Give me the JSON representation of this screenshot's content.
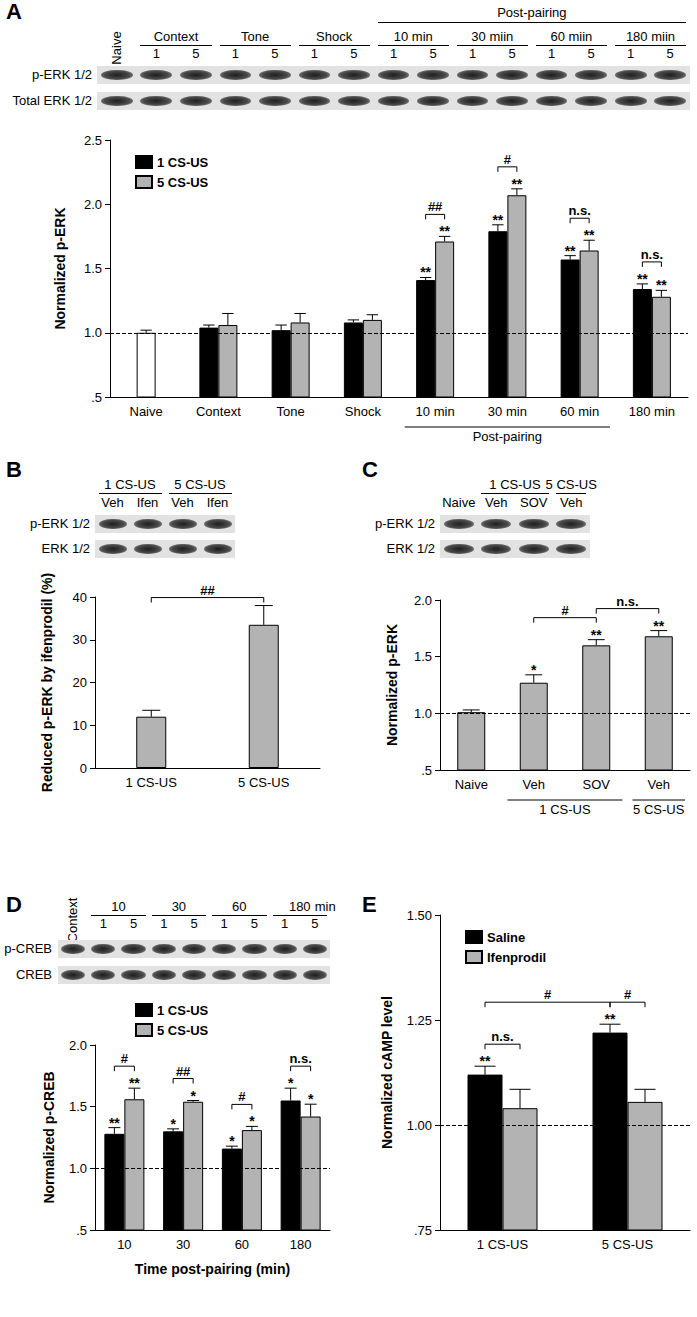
{
  "chart_data": [
    {
      "panel": "A",
      "type": "bar",
      "ylabel": "Normalized p-ERK",
      "categories": [
        "Naive",
        "Context",
        "Tone",
        "Shock",
        "10 min",
        "30 min",
        "60 min",
        "180 min"
      ],
      "control": {
        "category": "Naive",
        "value": 1.0,
        "error": 0.02,
        "color": "#ffffff"
      },
      "series": [
        {
          "name": "1 CS-US",
          "color": "#000000",
          "values": [
            null,
            1.04,
            1.02,
            1.08,
            1.41,
            1.79,
            1.57,
            1.34
          ],
          "errors": [
            null,
            0.02,
            0.04,
            0.02,
            0.02,
            0.05,
            0.03,
            0.04
          ],
          "significance": [
            null,
            null,
            null,
            null,
            "**",
            "**",
            "**",
            "**"
          ]
        },
        {
          "name": "5 CS-US",
          "color": "#b3b3b3",
          "values": [
            null,
            1.06,
            1.08,
            1.1,
            1.71,
            2.07,
            1.64,
            1.28
          ],
          "errors": [
            null,
            0.09,
            0.07,
            0.04,
            0.04,
            0.05,
            0.08,
            0.05
          ],
          "significance": [
            null,
            null,
            null,
            null,
            "**",
            "**",
            "**",
            "**"
          ]
        }
      ],
      "ylim": [
        0.5,
        2.5
      ],
      "yticks": [
        {
          "value": 0.5,
          "label": ".5"
        },
        {
          "value": 1,
          "label": "1.0"
        },
        {
          "value": 1.5,
          "label": "1.5"
        },
        {
          "value": 2,
          "label": "2.0"
        },
        {
          "value": 2.5,
          "label": "2.5"
        }
      ],
      "reference_line": 1,
      "grid": false,
      "legend": "upper left",
      "comparisons": [
        {
          "from": {
            "series": "1 CS-US",
            "index": 4
          },
          "to": {
            "series": "5 CS-US",
            "index": 4
          },
          "label": "##"
        },
        {
          "from": {
            "series": "1 CS-US",
            "index": 5
          },
          "to": {
            "series": "5 CS-US",
            "index": 5
          },
          "label": "#"
        },
        {
          "from": {
            "series": "1 CS-US",
            "index": 6
          },
          "to": {
            "series": "5 CS-US",
            "index": 6
          },
          "label": "n.s."
        },
        {
          "from": {
            "series": "1 CS-US",
            "index": 7
          },
          "to": {
            "series": "5 CS-US",
            "index": 7
          },
          "label": "n.s."
        }
      ],
      "category_groups": [
        {
          "label": "Post-pairing",
          "from": 4,
          "to": 6
        }
      ],
      "blot": {
        "rows": [
          "p-ERK 1/2",
          "Total ERK 1/2"
        ],
        "groups": [
          {
            "label": "Naive"
          },
          {
            "label": "Context",
            "lanes": [
              "1",
              "5"
            ]
          },
          {
            "label": "Tone",
            "lanes": [
              "1",
              "5"
            ]
          },
          {
            "label": "Shock",
            "lanes": [
              "1",
              "5"
            ]
          },
          {
            "label": "10 min",
            "lanes": [
              "1",
              "5"
            ]
          },
          {
            "label": "30 miin",
            "lanes": [
              "1",
              "5"
            ]
          },
          {
            "label": "60 miin",
            "lanes": [
              "1",
              "5"
            ]
          },
          {
            "label": "180 miin",
            "lanes": [
              "1",
              "5"
            ]
          }
        ],
        "spans": [
          {
            "label": "Post-pairing",
            "from": 4,
            "to": 7
          }
        ]
      }
    },
    {
      "panel": "B",
      "type": "bar",
      "ylabel": "Reduced p-ERK by ifenprodil (%)",
      "categories": [
        "1 CS-US",
        "5 CS-US"
      ],
      "series": [
        {
          "color": "#b3b3b3",
          "values": [
            12,
            33.5
          ],
          "errors": [
            1.5,
            4.5
          ]
        }
      ],
      "ylim": [
        0,
        40
      ],
      "yticks": [
        0,
        10,
        20,
        30,
        40
      ],
      "grid": false,
      "comparisons": [
        {
          "from": {
            "index": 0
          },
          "to": {
            "index": 1
          },
          "label": "##"
        }
      ],
      "blot": {
        "rows": [
          "p-ERK 1/2",
          "ERK 1/2"
        ],
        "groups": [
          {
            "label": "1 CS-US",
            "lanes": [
              "Veh",
              "Ifen"
            ]
          },
          {
            "label": "5 CS-US",
            "lanes": [
              "Veh",
              "Ifen"
            ]
          }
        ]
      }
    },
    {
      "panel": "C",
      "type": "bar",
      "ylabel": "Normalized p-ERK",
      "categories": [
        "Naive",
        "Veh",
        "SOV",
        "Veh"
      ],
      "series": [
        {
          "color": "#b3b3b3",
          "values": [
            1.01,
            1.27,
            1.6,
            1.68
          ],
          "errors": [
            0.02,
            0.07,
            0.05,
            0.05
          ],
          "significance": [
            null,
            "*",
            "**",
            "**"
          ]
        }
      ],
      "ylim": [
        0.5,
        2
      ],
      "yticks": [
        {
          "value": 0.5,
          "label": ".5"
        },
        {
          "value": 1,
          "label": "1.0"
        },
        {
          "value": 1.5,
          "label": "1.5"
        },
        {
          "value": 2,
          "label": "2.0"
        }
      ],
      "reference_line": 1,
      "grid": false,
      "comparisons": [
        {
          "from": {
            "index": 1
          },
          "to": {
            "index": 2
          },
          "label": "#"
        },
        {
          "from": {
            "index": 2
          },
          "to": {
            "index": 3
          },
          "label": "n.s."
        }
      ],
      "category_groups": [
        {
          "label": "1 CS-US",
          "from": 1,
          "to": 2
        },
        {
          "label": "5 CS-US",
          "from": 3,
          "to": 3
        }
      ],
      "blot": {
        "rows": [
          "p-ERK 1/2",
          "ERK 1/2"
        ],
        "groups": [
          {
            "label": "Naive"
          },
          {
            "label": "1 CS-US",
            "lanes": [
              "Veh",
              "SOV"
            ]
          },
          {
            "label": "5 CS-US",
            "lanes": [
              "Veh"
            ]
          }
        ]
      }
    },
    {
      "panel": "D",
      "type": "bar",
      "xlabel": "Time post-pairing (min)",
      "ylabel": "Normalized p-CREB",
      "categories": [
        "10",
        "30",
        "60",
        "180"
      ],
      "series": [
        {
          "name": "1 CS-US",
          "color": "#000000",
          "values": [
            1.28,
            1.3,
            1.16,
            1.55
          ],
          "errors": [
            0.05,
            0.02,
            0.02,
            0.1
          ],
          "significance": [
            "**",
            "*",
            "*",
            "*"
          ]
        },
        {
          "name": "5 CS-US",
          "color": "#b3b3b3",
          "values": [
            1.56,
            1.54,
            1.31,
            1.42
          ],
          "errors": [
            0.09,
            0.01,
            0.03,
            0.1
          ],
          "significance": [
            "**",
            "*",
            "*",
            "*"
          ]
        }
      ],
      "ylim": [
        0.5,
        2
      ],
      "yticks": [
        {
          "value": 0.5,
          "label": ".5"
        },
        {
          "value": 1,
          "label": "1.0"
        },
        {
          "value": 1.5,
          "label": "1.5"
        },
        {
          "value": 2,
          "label": "2.0"
        }
      ],
      "reference_line": 1,
      "grid": false,
      "legend": "upper left",
      "comparisons": [
        {
          "from": {
            "series": "1 CS-US",
            "index": 0
          },
          "to": {
            "series": "5 CS-US",
            "index": 0
          },
          "label": "#"
        },
        {
          "from": {
            "series": "1 CS-US",
            "index": 1
          },
          "to": {
            "series": "5 CS-US",
            "index": 1
          },
          "label": "##"
        },
        {
          "from": {
            "series": "1 CS-US",
            "index": 2
          },
          "to": {
            "series": "5 CS-US",
            "index": 2
          },
          "label": "#"
        },
        {
          "from": {
            "series": "1 CS-US",
            "index": 3
          },
          "to": {
            "series": "5 CS-US",
            "index": 3
          },
          "label": "n.s."
        }
      ],
      "blot": {
        "rows": [
          "p-CREB",
          "CREB"
        ],
        "groups": [
          {
            "label": "Context"
          },
          {
            "label": "10",
            "lanes": [
              "1",
              "5"
            ]
          },
          {
            "label": "30",
            "lanes": [
              "1",
              "5"
            ]
          },
          {
            "label": "60",
            "lanes": [
              "1",
              "5"
            ]
          },
          {
            "label": "180",
            "lanes": [
              "1",
              "5"
            ]
          }
        ],
        "unit": "min"
      }
    },
    {
      "panel": "E",
      "type": "bar",
      "ylabel": "Normalized cAMP level",
      "categories": [
        "1 CS-US",
        "5 CS-US"
      ],
      "series": [
        {
          "name": "Saline",
          "color": "#000000",
          "values": [
            1.12,
            1.22
          ],
          "errors": [
            0.02,
            0.02
          ],
          "significance": [
            "**",
            "**"
          ]
        },
        {
          "name": "Ifenprodil",
          "color": "#b3b3b3",
          "values": [
            1.04,
            1.055
          ],
          "errors": [
            0.045,
            0.03
          ],
          "significance": [
            null,
            null
          ]
        }
      ],
      "ylim": [
        0.75,
        1.5
      ],
      "yticks": [
        {
          "value": 0.75,
          "label": ".75"
        },
        {
          "value": 1,
          "label": "1.00"
        },
        {
          "value": 1.25,
          "label": "1.25"
        },
        {
          "value": 1.5,
          "label": "1.50"
        }
      ],
      "reference_line": 1,
      "grid": false,
      "legend": "upper left",
      "comparisons": [
        {
          "from": {
            "series": "Saline",
            "index": 0
          },
          "to": {
            "series": "Ifenprodil",
            "index": 0
          },
          "label": "n.s."
        },
        {
          "from": {
            "series": "Saline",
            "index": 1
          },
          "to": {
            "series": "Ifenprodil",
            "index": 1
          },
          "label": "#"
        },
        {
          "from": {
            "series": "Saline",
            "index": 0
          },
          "to": {
            "series": "Saline",
            "index": 1
          },
          "label": "#"
        }
      ]
    }
  ]
}
